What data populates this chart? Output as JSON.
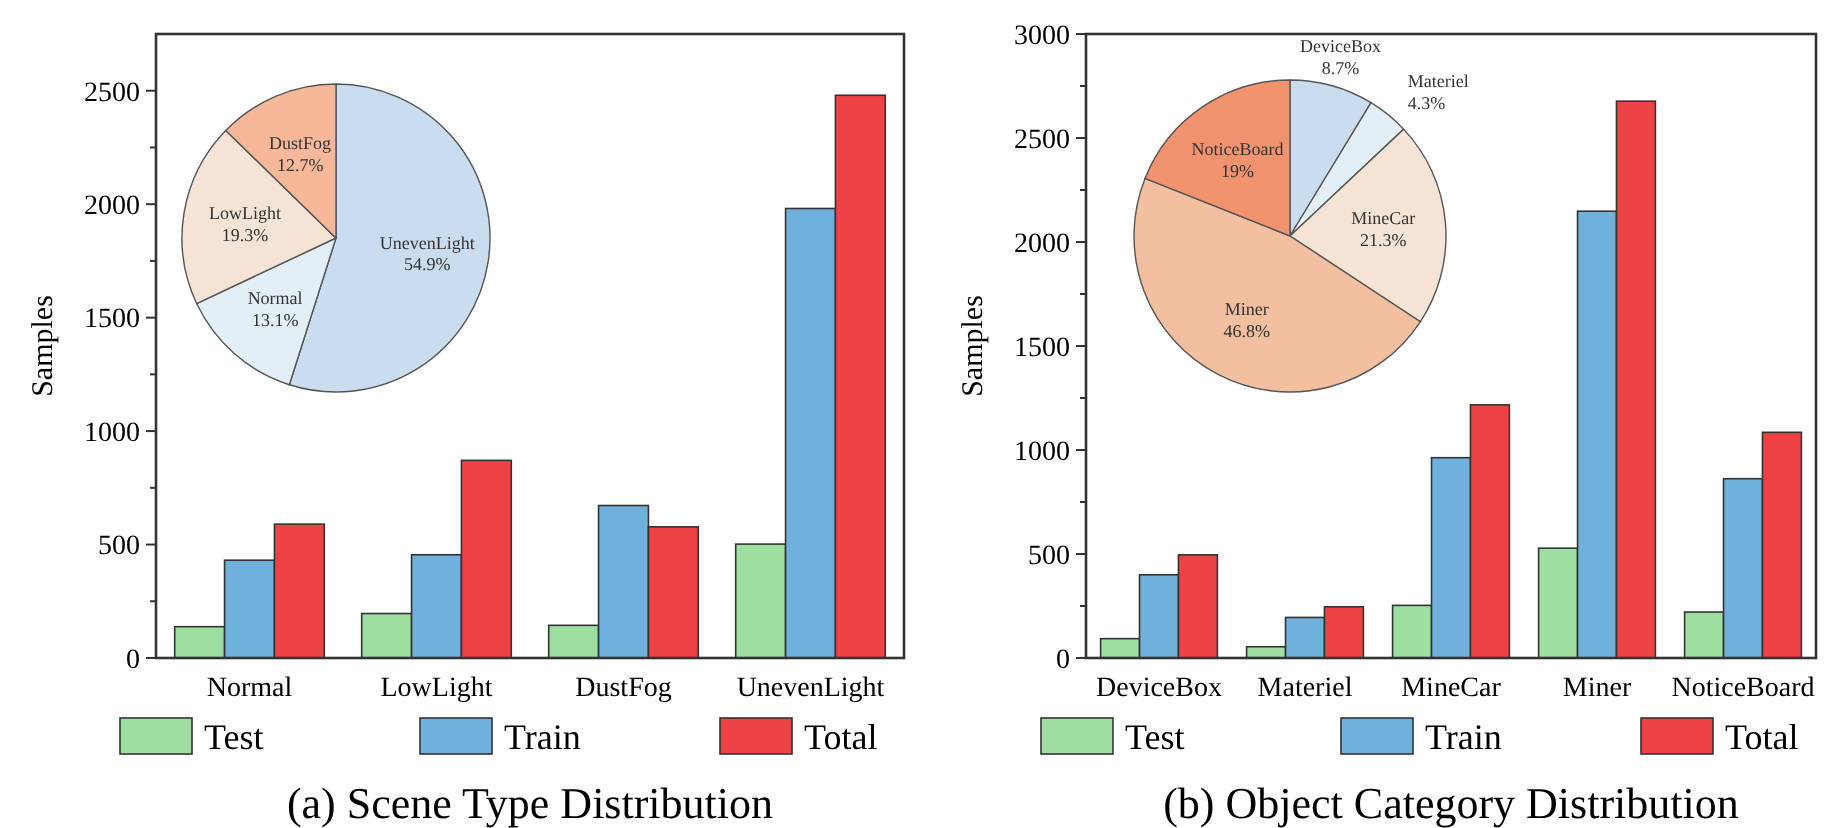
{
  "chart_data": [
    {
      "type": "bar",
      "title": "(a) Scene Type Distribution",
      "ylabel": "Samples",
      "categories": [
        "Normal",
        "LowLight",
        "DustFog",
        "UnevenLight"
      ],
      "series": [
        {
          "name": "Test",
          "color": "#9ddfa0",
          "values": [
            138,
            196,
            144,
            502
          ]
        },
        {
          "name": "Train",
          "color": "#70b1dc",
          "values": [
            431,
            455,
            672,
            1981
          ]
        },
        {
          "name": "Total",
          "color": "#ee4344",
          "values": [
            590,
            871,
            578,
            2480
          ]
        }
      ],
      "ylim": [
        0,
        2750
      ],
      "yticks": [
        0,
        {
          "value": 250,
          "label": null
        },
        500,
        {
          "value": 750,
          "label": null
        },
        1000,
        {
          "value": 1250,
          "label": null
        },
        1500,
        {
          "value": 1750,
          "label": null
        },
        2000,
        {
          "value": 2250,
          "label": null
        },
        2500
      ],
      "grid": false,
      "legend": "bottom"
    },
    {
      "type": "pie",
      "categories": [
        "UnevenLight",
        "Normal",
        "LowLight",
        "DustFog"
      ],
      "values": [
        54.9,
        13.1,
        19.3,
        12.7
      ],
      "value_labels": [
        "54.9%",
        "13.1%",
        "19.3%",
        "12.7%"
      ],
      "colors": [
        "#c9ddee",
        "#e3eff7",
        "#f5e4d6",
        "#f7b89a"
      ]
    },
    {
      "type": "bar",
      "title": "(b) Object Category Distribution",
      "ylabel": "Samples",
      "categories": [
        "DeviceBox",
        "Materiel",
        "MineCar",
        "Miner",
        "NoticeBoard"
      ],
      "series": [
        {
          "name": "Test",
          "color": "#9ddfa0",
          "values": [
            93,
            54,
            253,
            528,
            221
          ]
        },
        {
          "name": "Train",
          "color": "#70b1dc",
          "values": [
            400,
            195,
            963,
            2148,
            862
          ]
        },
        {
          "name": "Total",
          "color": "#ee4344",
          "values": [
            496,
            246,
            1217,
            2677,
            1085
          ]
        }
      ],
      "ylim": [
        0,
        3000
      ],
      "yticks": [
        0,
        {
          "value": 250,
          "label": null
        },
        500,
        {
          "value": 750,
          "label": null
        },
        1000,
        {
          "value": 1250,
          "label": null
        },
        1500,
        {
          "value": 1750,
          "label": null
        },
        2000,
        {
          "value": 2250,
          "label": null
        },
        2500,
        {
          "value": 2750,
          "label": null
        },
        3000
      ],
      "grid": false,
      "legend": "bottom"
    },
    {
      "type": "pie",
      "categories": [
        "DeviceBox",
        "Materiel",
        "MineCar",
        "Miner",
        "NoticeBoard"
      ],
      "values": [
        8.7,
        4.3,
        21.3,
        46.8,
        19
      ],
      "value_labels": [
        "8.7%",
        "4.3%",
        "21.3%",
        "46.8%",
        "19%"
      ],
      "colors": [
        "#c9ddee",
        "#e3eff7",
        "#f5e4d6",
        "#f2bfa0",
        "#f2936f"
      ]
    }
  ]
}
